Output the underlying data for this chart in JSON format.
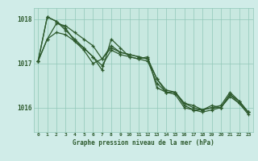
{
  "title": "Graphe pression niveau de la mer (hPa)",
  "bg_color": "#c8e8e0",
  "plot_bg_color": "#c8e8e0",
  "grid_color": "#90c8b8",
  "line_color": "#2d5a2d",
  "outer_bg": "#d0ece8",
  "xlim": [
    -0.5,
    23.5
  ],
  "ylim": [
    1015.45,
    1018.25
  ],
  "yticks": [
    1016,
    1017,
    1018
  ],
  "xticks": [
    0,
    1,
    2,
    3,
    4,
    5,
    6,
    7,
    8,
    9,
    10,
    11,
    12,
    13,
    14,
    15,
    16,
    17,
    18,
    19,
    20,
    21,
    22,
    23
  ],
  "series": [
    [
      1017.05,
      1017.55,
      1017.9,
      1017.85,
      1017.7,
      1017.55,
      1017.4,
      1017.1,
      1017.35,
      1017.25,
      1017.2,
      1017.15,
      1017.1,
      1016.65,
      1016.35,
      1016.35,
      1016.1,
      1016.05,
      1015.95,
      1016.0,
      1016.0,
      1016.3,
      1016.15,
      1015.9
    ],
    [
      1017.05,
      1018.05,
      1017.95,
      1017.8,
      1017.5,
      1017.3,
      1017.0,
      1017.1,
      1017.4,
      1017.25,
      1017.2,
      1017.15,
      1017.1,
      1016.65,
      1016.4,
      1016.35,
      1016.1,
      1016.0,
      1015.95,
      1016.0,
      1016.05,
      1016.35,
      1016.15,
      1015.9
    ],
    [
      1017.05,
      1018.05,
      1017.95,
      1017.75,
      1017.55,
      1017.35,
      1017.15,
      1016.95,
      1017.3,
      1017.2,
      1017.15,
      1017.1,
      1017.05,
      1016.55,
      1016.35,
      1016.3,
      1016.0,
      1015.95,
      1015.9,
      1015.95,
      1016.0,
      1016.25,
      1016.1,
      1015.85
    ],
    [
      1017.05,
      1017.55,
      1017.7,
      1017.65,
      1017.5,
      1017.35,
      1017.15,
      1016.85,
      1017.55,
      1017.35,
      1017.15,
      1017.1,
      1017.15,
      1016.45,
      1016.35,
      1016.35,
      1016.05,
      1015.95,
      1015.95,
      1016.05,
      1016.0,
      1016.3,
      1016.1,
      1015.9
    ]
  ]
}
